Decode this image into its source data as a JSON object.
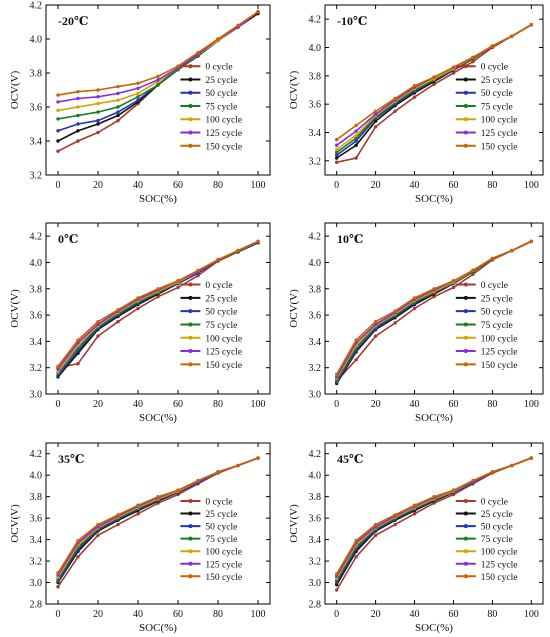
{
  "figure": {
    "series_names": [
      "0 cycle",
      "25 cycle",
      "50 cycle",
      "75 cycle",
      "100 cycle",
      "125 cycle",
      "150 cycle"
    ],
    "series_colors": [
      "#a33b2e",
      "#111111",
      "#2233bb",
      "#1f7a1f",
      "#d6a300",
      "#8a2be2",
      "#c86400"
    ]
  },
  "chart_data": [
    {
      "type": "line",
      "title": "-20℃",
      "xlabel": "SOC(%)",
      "ylabel": "OCV(V)",
      "xlim": [
        -6,
        106
      ],
      "ylim": [
        3.2,
        4.2
      ],
      "xticks": [
        "0",
        "20",
        "40",
        "60",
        "80",
        "100"
      ],
      "yticks": [
        "3.2",
        "3.4",
        "3.6",
        "3.8",
        "4.0",
        "4.2"
      ],
      "legend": "right",
      "x": [
        0,
        10,
        20,
        30,
        40,
        50,
        60,
        70,
        80,
        90,
        100
      ],
      "series": [
        {
          "name": "0 cycle",
          "values": [
            3.34,
            3.4,
            3.45,
            3.52,
            3.62,
            3.73,
            3.83,
            3.91,
            3.99,
            4.07,
            4.15
          ]
        },
        {
          "name": "25 cycle",
          "values": [
            3.4,
            3.46,
            3.5,
            3.55,
            3.63,
            3.73,
            3.82,
            3.9,
            3.99,
            4.07,
            4.15
          ]
        },
        {
          "name": "50 cycle",
          "values": [
            3.46,
            3.5,
            3.52,
            3.57,
            3.64,
            3.73,
            3.82,
            3.9,
            3.99,
            4.07,
            4.16
          ]
        },
        {
          "name": "75 cycle",
          "values": [
            3.53,
            3.55,
            3.57,
            3.6,
            3.66,
            3.73,
            3.82,
            3.9,
            3.99,
            4.07,
            4.16
          ]
        },
        {
          "name": "100 cycle",
          "values": [
            3.58,
            3.6,
            3.62,
            3.64,
            3.68,
            3.75,
            3.83,
            3.91,
            3.99,
            4.07,
            4.16
          ]
        },
        {
          "name": "125 cycle",
          "values": [
            3.63,
            3.65,
            3.66,
            3.68,
            3.71,
            3.76,
            3.83,
            3.91,
            4.0,
            4.07,
            4.16
          ]
        },
        {
          "name": "150 cycle",
          "values": [
            3.67,
            3.69,
            3.7,
            3.72,
            3.74,
            3.78,
            3.84,
            3.92,
            4.0,
            4.08,
            4.16
          ]
        }
      ]
    },
    {
      "type": "line",
      "title": "-10℃",
      "xlabel": "SOC(%)",
      "ylabel": "OCV(V)",
      "xlim": [
        -6,
        106
      ],
      "ylim": [
        3.1,
        4.3
      ],
      "xticks": [
        "0",
        "20",
        "40",
        "60",
        "80",
        "100"
      ],
      "yticks": [
        "3.2",
        "3.4",
        "3.6",
        "3.8",
        "4.0",
        "4.2"
      ],
      "legend": "right",
      "x": [
        0,
        10,
        20,
        30,
        40,
        50,
        60,
        70,
        80,
        90,
        100
      ],
      "series": [
        {
          "name": "0 cycle",
          "values": [
            3.19,
            3.22,
            3.44,
            3.55,
            3.65,
            3.74,
            3.82,
            3.9,
            4.0,
            4.08,
            4.16
          ]
        },
        {
          "name": "25 cycle",
          "values": [
            3.22,
            3.31,
            3.48,
            3.59,
            3.68,
            3.76,
            3.84,
            3.92,
            4.01,
            4.08,
            4.16
          ]
        },
        {
          "name": "50 cycle",
          "values": [
            3.24,
            3.34,
            3.5,
            3.6,
            3.69,
            3.77,
            3.84,
            3.92,
            4.01,
            4.08,
            4.16
          ]
        },
        {
          "name": "75 cycle",
          "values": [
            3.26,
            3.36,
            3.51,
            3.61,
            3.7,
            3.77,
            3.85,
            3.92,
            4.01,
            4.08,
            4.16
          ]
        },
        {
          "name": "100 cycle",
          "values": [
            3.28,
            3.38,
            3.52,
            3.62,
            3.71,
            3.78,
            3.85,
            3.93,
            4.01,
            4.08,
            4.16
          ]
        },
        {
          "name": "125 cycle",
          "values": [
            3.31,
            3.41,
            3.53,
            3.63,
            3.72,
            3.79,
            3.86,
            3.93,
            4.01,
            4.08,
            4.16
          ]
        },
        {
          "name": "150 cycle",
          "values": [
            3.35,
            3.45,
            3.55,
            3.64,
            3.73,
            3.79,
            3.86,
            3.93,
            4.01,
            4.08,
            4.16
          ]
        }
      ]
    },
    {
      "type": "line",
      "title": "0℃",
      "xlabel": "SOC(%)",
      "ylabel": "OCV(V)",
      "xlim": [
        -6,
        106
      ],
      "ylim": [
        3.0,
        4.3
      ],
      "xticks": [
        "0",
        "20",
        "40",
        "60",
        "80",
        "100"
      ],
      "yticks": [
        "3.0",
        "3.2",
        "3.4",
        "3.6",
        "3.8",
        "4.0",
        "4.2"
      ],
      "legend": "right",
      "x": [
        0,
        10,
        20,
        30,
        40,
        50,
        60,
        70,
        80,
        90,
        100
      ],
      "series": [
        {
          "name": "0 cycle",
          "values": [
            3.2,
            3.23,
            3.44,
            3.55,
            3.65,
            3.74,
            3.81,
            3.9,
            4.01,
            4.08,
            4.15
          ]
        },
        {
          "name": "25 cycle",
          "values": [
            3.13,
            3.31,
            3.49,
            3.59,
            3.68,
            3.76,
            3.84,
            3.92,
            4.02,
            4.08,
            4.15
          ]
        },
        {
          "name": "50 cycle",
          "values": [
            3.14,
            3.33,
            3.5,
            3.6,
            3.69,
            3.77,
            3.84,
            3.92,
            4.02,
            4.08,
            4.15
          ]
        },
        {
          "name": "75 cycle",
          "values": [
            3.16,
            3.35,
            3.51,
            3.61,
            3.7,
            3.77,
            3.85,
            3.93,
            4.02,
            4.08,
            4.16
          ]
        },
        {
          "name": "100 cycle",
          "values": [
            3.17,
            3.37,
            3.52,
            3.62,
            3.71,
            3.78,
            3.85,
            3.93,
            4.02,
            4.09,
            4.16
          ]
        },
        {
          "name": "125 cycle",
          "values": [
            3.19,
            3.39,
            3.53,
            3.63,
            3.72,
            3.79,
            3.86,
            3.93,
            4.02,
            4.09,
            4.16
          ]
        },
        {
          "name": "150 cycle",
          "values": [
            3.21,
            3.41,
            3.55,
            3.64,
            3.73,
            3.8,
            3.86,
            3.94,
            4.02,
            4.09,
            4.16
          ]
        }
      ]
    },
    {
      "type": "line",
      "title": "10℃",
      "xlabel": "SOC(%)",
      "ylabel": "OCV(V)",
      "xlim": [
        -6,
        106
      ],
      "ylim": [
        3.0,
        4.3
      ],
      "xticks": [
        "0",
        "20",
        "40",
        "60",
        "80",
        "100"
      ],
      "yticks": [
        "3.0",
        "3.2",
        "3.4",
        "3.6",
        "3.8",
        "4.0",
        "4.2"
      ],
      "legend": "right",
      "x": [
        0,
        10,
        20,
        30,
        40,
        50,
        60,
        70,
        80,
        90,
        100
      ],
      "series": [
        {
          "name": "0 cycle",
          "values": [
            3.1,
            3.26,
            3.44,
            3.54,
            3.65,
            3.74,
            3.81,
            3.91,
            4.02,
            4.09,
            4.16
          ]
        },
        {
          "name": "25 cycle",
          "values": [
            3.08,
            3.32,
            3.49,
            3.58,
            3.68,
            3.76,
            3.84,
            3.93,
            4.03,
            4.09,
            4.16
          ]
        },
        {
          "name": "50 cycle",
          "values": [
            3.09,
            3.33,
            3.5,
            3.59,
            3.69,
            3.77,
            3.84,
            3.93,
            4.03,
            4.09,
            4.16
          ]
        },
        {
          "name": "75 cycle",
          "values": [
            3.1,
            3.35,
            3.51,
            3.6,
            3.7,
            3.77,
            3.85,
            3.93,
            4.03,
            4.09,
            4.16
          ]
        },
        {
          "name": "100 cycle",
          "values": [
            3.12,
            3.37,
            3.52,
            3.61,
            3.71,
            3.78,
            3.85,
            3.94,
            4.03,
            4.09,
            4.16
          ]
        },
        {
          "name": "125 cycle",
          "values": [
            3.13,
            3.39,
            3.53,
            3.62,
            3.72,
            3.79,
            3.86,
            3.94,
            4.03,
            4.09,
            4.16
          ]
        },
        {
          "name": "150 cycle",
          "values": [
            3.15,
            3.41,
            3.55,
            3.63,
            3.73,
            3.8,
            3.86,
            3.94,
            4.03,
            4.09,
            4.16
          ]
        }
      ]
    },
    {
      "type": "line",
      "title": "35℃",
      "xlabel": "SOC(%)",
      "ylabel": "OCV(V)",
      "xlim": [
        -6,
        106
      ],
      "ylim": [
        2.8,
        4.3
      ],
      "xticks": [
        "0",
        "20",
        "40",
        "60",
        "80",
        "100"
      ],
      "yticks": [
        "2.8",
        "3.0",
        "3.2",
        "3.4",
        "3.6",
        "3.8",
        "4.0",
        "4.2"
      ],
      "legend": "right",
      "x": [
        0,
        10,
        20,
        30,
        40,
        50,
        60,
        70,
        80,
        90,
        100
      ],
      "series": [
        {
          "name": "0 cycle",
          "values": [
            2.96,
            3.24,
            3.44,
            3.54,
            3.64,
            3.74,
            3.82,
            3.92,
            4.02,
            4.09,
            4.16
          ]
        },
        {
          "name": "25 cycle",
          "values": [
            3.0,
            3.29,
            3.48,
            3.58,
            3.67,
            3.76,
            3.84,
            3.93,
            4.03,
            4.09,
            4.16
          ]
        },
        {
          "name": "50 cycle",
          "values": [
            3.01,
            3.31,
            3.49,
            3.59,
            3.68,
            3.77,
            3.84,
            3.93,
            4.03,
            4.09,
            4.16
          ]
        },
        {
          "name": "75 cycle",
          "values": [
            3.03,
            3.33,
            3.5,
            3.6,
            3.69,
            3.77,
            3.85,
            3.94,
            4.03,
            4.09,
            4.16
          ]
        },
        {
          "name": "100 cycle",
          "values": [
            3.05,
            3.35,
            3.51,
            3.61,
            3.7,
            3.78,
            3.85,
            3.94,
            4.03,
            4.09,
            4.16
          ]
        },
        {
          "name": "125 cycle",
          "values": [
            3.07,
            3.37,
            3.52,
            3.62,
            3.71,
            3.79,
            3.86,
            3.94,
            4.03,
            4.09,
            4.16
          ]
        },
        {
          "name": "150 cycle",
          "values": [
            3.09,
            3.39,
            3.54,
            3.63,
            3.72,
            3.8,
            3.86,
            3.95,
            4.03,
            4.09,
            4.16
          ]
        }
      ]
    },
    {
      "type": "line",
      "title": "45℃",
      "xlabel": "SOC(%)",
      "ylabel": "OCV(V)",
      "xlim": [
        -6,
        106
      ],
      "ylim": [
        2.8,
        4.3
      ],
      "xticks": [
        "0",
        "20",
        "40",
        "60",
        "80",
        "100"
      ],
      "yticks": [
        "2.8",
        "3.0",
        "3.2",
        "3.4",
        "3.6",
        "3.8",
        "4.0",
        "4.2"
      ],
      "legend": "right",
      "x": [
        0,
        10,
        20,
        30,
        40,
        50,
        60,
        70,
        80,
        90,
        100
      ],
      "series": [
        {
          "name": "0 cycle",
          "values": [
            2.93,
            3.24,
            3.44,
            3.54,
            3.64,
            3.74,
            3.82,
            3.92,
            4.02,
            4.09,
            4.16
          ]
        },
        {
          "name": "25 cycle",
          "values": [
            2.98,
            3.29,
            3.48,
            3.58,
            3.67,
            3.76,
            3.84,
            3.93,
            4.03,
            4.09,
            4.16
          ]
        },
        {
          "name": "50 cycle",
          "values": [
            3.0,
            3.31,
            3.49,
            3.59,
            3.68,
            3.77,
            3.84,
            3.93,
            4.03,
            4.09,
            4.16
          ]
        },
        {
          "name": "75 cycle",
          "values": [
            3.02,
            3.33,
            3.5,
            3.6,
            3.69,
            3.77,
            3.85,
            3.94,
            4.03,
            4.09,
            4.16
          ]
        },
        {
          "name": "100 cycle",
          "values": [
            3.04,
            3.35,
            3.51,
            3.61,
            3.7,
            3.78,
            3.85,
            3.94,
            4.03,
            4.09,
            4.16
          ]
        },
        {
          "name": "125 cycle",
          "values": [
            3.06,
            3.37,
            3.52,
            3.62,
            3.71,
            3.79,
            3.86,
            3.94,
            4.03,
            4.09,
            4.16
          ]
        },
        {
          "name": "150 cycle",
          "values": [
            3.08,
            3.39,
            3.54,
            3.63,
            3.72,
            3.8,
            3.86,
            3.95,
            4.03,
            4.09,
            4.16
          ]
        }
      ]
    }
  ]
}
